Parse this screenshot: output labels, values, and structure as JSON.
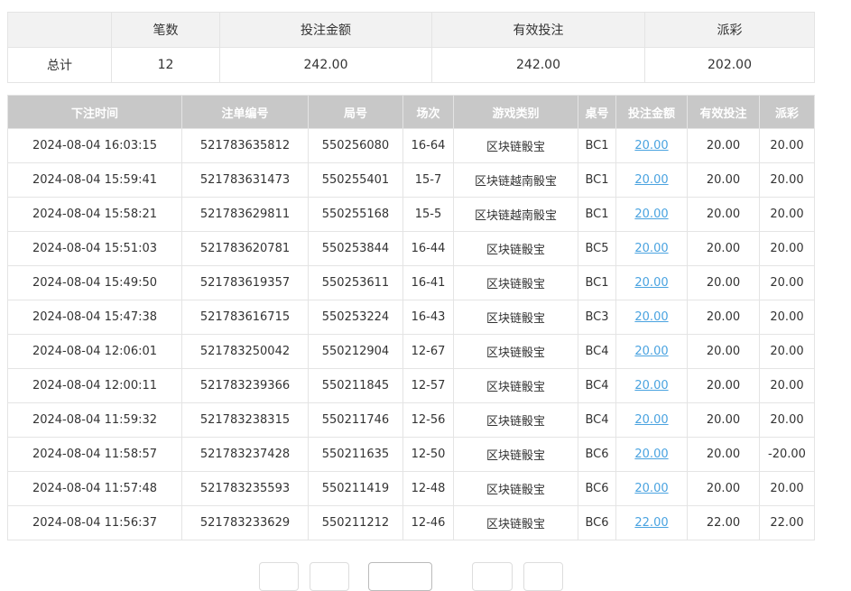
{
  "summary": {
    "headers": [
      "",
      "笔数",
      "投注金额",
      "有效投注",
      "派彩"
    ],
    "row": [
      "总计",
      "12",
      "242.00",
      "242.00",
      "202.00"
    ]
  },
  "bets": {
    "headers": [
      "下注时间",
      "注单编号",
      "局号",
      "场次",
      "游戏类别",
      "桌号",
      "投注金额",
      "有效投注",
      "派彩"
    ],
    "rows": [
      [
        "2024-08-04 16:03:15",
        "521783635812",
        "550256080",
        "16-64",
        "区块链骰宝",
        "BC1",
        "20.00",
        "20.00",
        "20.00"
      ],
      [
        "2024-08-04 15:59:41",
        "521783631473",
        "550255401",
        "15-7",
        "区块链越南骰宝",
        "BC1",
        "20.00",
        "20.00",
        "20.00"
      ],
      [
        "2024-08-04 15:58:21",
        "521783629811",
        "550255168",
        "15-5",
        "区块链越南骰宝",
        "BC1",
        "20.00",
        "20.00",
        "20.00"
      ],
      [
        "2024-08-04 15:51:03",
        "521783620781",
        "550253844",
        "16-44",
        "区块链骰宝",
        "BC5",
        "20.00",
        "20.00",
        "20.00"
      ],
      [
        "2024-08-04 15:49:50",
        "521783619357",
        "550253611",
        "16-41",
        "区块链骰宝",
        "BC1",
        "20.00",
        "20.00",
        "20.00"
      ],
      [
        "2024-08-04 15:47:38",
        "521783616715",
        "550253224",
        "16-43",
        "区块链骰宝",
        "BC3",
        "20.00",
        "20.00",
        "20.00"
      ],
      [
        "2024-08-04 12:06:01",
        "521783250042",
        "550212904",
        "12-67",
        "区块链骰宝",
        "BC4",
        "20.00",
        "20.00",
        "20.00"
      ],
      [
        "2024-08-04 12:00:11",
        "521783239366",
        "550211845",
        "12-57",
        "区块链骰宝",
        "BC4",
        "20.00",
        "20.00",
        "20.00"
      ],
      [
        "2024-08-04 11:59:32",
        "521783238315",
        "550211746",
        "12-56",
        "区块链骰宝",
        "BC4",
        "20.00",
        "20.00",
        "20.00"
      ],
      [
        "2024-08-04 11:58:57",
        "521783237428",
        "550211635",
        "12-50",
        "区块链骰宝",
        "BC6",
        "20.00",
        "20.00",
        "-20.00"
      ],
      [
        "2024-08-04 11:57:48",
        "521783235593",
        "550211419",
        "12-48",
        "区块链骰宝",
        "BC6",
        "20.00",
        "20.00",
        "20.00"
      ],
      [
        "2024-08-04 11:56:37",
        "521783233629",
        "550211212",
        "12-46",
        "区块链骰宝",
        "BC6",
        "22.00",
        "22.00",
        "22.00"
      ]
    ]
  },
  "colors": {
    "link": "#4aa3e0",
    "negative": "#e8384f",
    "header_bg": "#c8c8c8"
  }
}
